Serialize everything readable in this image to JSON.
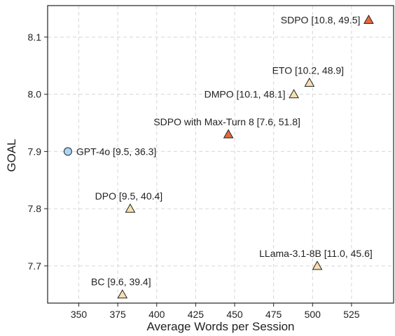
{
  "chart_data": {
    "type": "scatter",
    "title": "",
    "xlabel": "Average Words per Session",
    "ylabel": "GOAL",
    "xlim": [
      330,
      552
    ],
    "ylim": [
      7.635,
      8.155
    ],
    "xticks": [
      350,
      375,
      400,
      425,
      450,
      475,
      500,
      525
    ],
    "yticks": [
      7.7,
      7.8,
      7.9,
      8.0,
      8.1
    ],
    "grid": true,
    "colors": {
      "highlight": "#e8673f",
      "baseline": "#f7dfb0",
      "reference": "#a9d6f5",
      "edge": "#222222"
    },
    "points": [
      {
        "label": "SDPO [10.8, 49.5]",
        "x": 536,
        "y": 8.13,
        "marker": "triangle",
        "color": "highlight",
        "label_pos": "left"
      },
      {
        "label": "ETO [10.2, 48.9]",
        "x": 498,
        "y": 8.02,
        "marker": "triangle",
        "color": "baseline",
        "label_pos": "above"
      },
      {
        "label": "DMPO [10.1, 48.1]",
        "x": 488,
        "y": 8.0,
        "marker": "triangle",
        "color": "baseline",
        "label_pos": "left"
      },
      {
        "label": "SDPO with Max-Turn 8 [7.6, 51.8]",
        "x": 446,
        "y": 7.93,
        "marker": "triangle",
        "color": "highlight",
        "label_pos": "above"
      },
      {
        "label": "GPT-4o [9.5, 36.3]",
        "x": 343,
        "y": 7.9,
        "marker": "circle",
        "color": "reference",
        "label_pos": "right"
      },
      {
        "label": "DPO [9.5, 40.4]",
        "x": 383,
        "y": 7.8,
        "marker": "triangle",
        "color": "baseline",
        "label_pos": "above"
      },
      {
        "label": "LLama-3.1-8B [11.0, 45.6]",
        "x": 503,
        "y": 7.7,
        "marker": "triangle",
        "color": "baseline",
        "label_pos": "above"
      },
      {
        "label": "BC [9.6, 39.4]",
        "x": 378,
        "y": 7.65,
        "marker": "triangle",
        "color": "baseline",
        "label_pos": "above"
      }
    ]
  }
}
